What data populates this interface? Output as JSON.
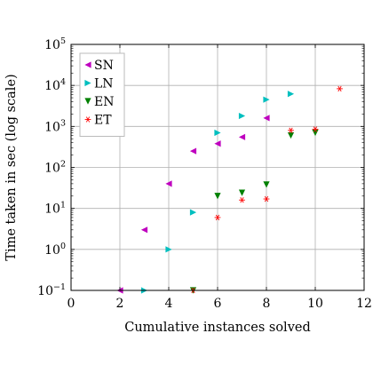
{
  "chart_data": {
    "type": "scatter",
    "xlabel": "Cumulative instances solved",
    "ylabel": "Time taken in sec (log scale)",
    "xlim": [
      0,
      12
    ],
    "ylim": [
      0.1,
      100000
    ],
    "y_scale": "log",
    "grid": true,
    "legend_position": "top-left",
    "x_ticks": [
      "0",
      "2",
      "4",
      "6",
      "8",
      "10",
      "12"
    ],
    "y_ticks": [
      {
        "base": "10",
        "exp": "−1"
      },
      {
        "base": "10",
        "exp": "0"
      },
      {
        "base": "10",
        "exp": "1"
      },
      {
        "base": "10",
        "exp": "2"
      },
      {
        "base": "10",
        "exp": "3"
      },
      {
        "base": "10",
        "exp": "4"
      },
      {
        "base": "10",
        "exp": "5"
      }
    ],
    "series": [
      {
        "name": "SN",
        "marker": "triangle-left",
        "color": "#bf00bf",
        "points": [
          [
            2,
            0.1
          ],
          [
            3,
            3
          ],
          [
            4,
            40
          ],
          [
            5,
            250
          ],
          [
            6,
            380
          ],
          [
            7,
            550
          ],
          [
            8,
            1600
          ]
        ]
      },
      {
        "name": "LN",
        "marker": "triangle-right",
        "color": "#00bfbf",
        "points": [
          [
            3,
            0.1
          ],
          [
            4,
            1
          ],
          [
            5,
            8
          ],
          [
            6,
            700
          ],
          [
            7,
            1800
          ],
          [
            8,
            4500
          ],
          [
            9,
            6200
          ]
        ]
      },
      {
        "name": "EN",
        "marker": "triangle-down",
        "color": "#008000",
        "points": [
          [
            5,
            0.1
          ],
          [
            6,
            20
          ],
          [
            7,
            24
          ],
          [
            8,
            38
          ],
          [
            9,
            600
          ],
          [
            10,
            700
          ]
        ]
      },
      {
        "name": "ET",
        "marker": "asterisk",
        "color": "#ff0000",
        "points": [
          [
            5,
            0.1
          ],
          [
            6,
            6
          ],
          [
            7,
            16
          ],
          [
            8,
            17
          ],
          [
            9,
            800
          ],
          [
            10,
            850
          ],
          [
            11,
            8300
          ]
        ]
      }
    ]
  }
}
